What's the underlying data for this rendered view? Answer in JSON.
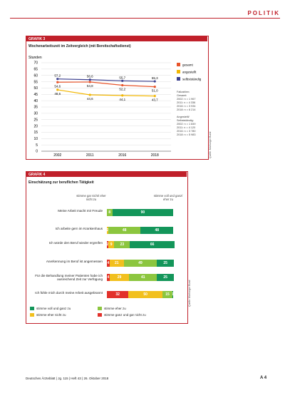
{
  "header": "POLITIK",
  "chart_data": [
    {
      "type": "line",
      "tag": "GRAFIK 3",
      "title": "Wochenarbeitszeit im Zeitvergleich (mit Bereitschaftsdienst)",
      "ylabel": "Stunden",
      "categories": [
        "2002",
        "2011",
        "2016",
        "2018"
      ],
      "ylim": [
        0,
        70
      ],
      "yticks": [
        0,
        5,
        10,
        15,
        20,
        25,
        30,
        35,
        40,
        45,
        50,
        55,
        60,
        65,
        70
      ],
      "grid": true,
      "series": [
        {
          "name": "gesamt",
          "color": "#e8542a",
          "values": [
            54.6,
            54.8,
            52.2,
            51.0
          ],
          "value_labels": [
            "54,6",
            "54,8",
            "52,2",
            "51,0"
          ]
        },
        {
          "name": "angestellt",
          "color": "#f2b705",
          "values": [
            48.6,
            44.6,
            44.1,
            43.7
          ],
          "value_labels": [
            "48,6",
            "44,6",
            "44,1",
            "43,7"
          ]
        },
        {
          "name": "selbstständig",
          "color": "#3b3f8f",
          "values": [
            57.2,
            56.6,
            55.7,
            55.3
          ],
          "value_labels": [
            "57,2",
            "56,6",
            "55,7",
            "55,3"
          ]
        }
      ],
      "note": [
        "Fallzahlen:",
        "Gesamt:",
        "2002: n = 1 967",
        "2011: n = 4 336",
        "2016: n = 3 934",
        "2018: n = 6 214",
        "",
        "Angestellt/",
        "Selbstständig:",
        "2002: n = 1 849",
        "2011: n = 4 120",
        "2016: n = 3 780",
        "2018: n = 5 983"
      ],
      "source": "Quelle: Marburger Bund"
    },
    {
      "type": "bar",
      "orientation": "horizontal",
      "stacked": true,
      "tag": "GRAFIK 4",
      "title": "Einschätzung zur beruflichen Tätigkeit",
      "column_headers": [
        "stimme gar nicht/ eher nicht zu",
        "stimme voll und ganz/ eher zu"
      ],
      "categories": [
        "Meine Arbeit macht mir Freude",
        "Ich arbeite gern im Krankenhaus",
        "Ich würde den Beruf wieder ergreifen",
        "Anerkennung im Beruf ist angemessen",
        "Für die Behandlung meiner Patienten habe ich ausreichend Zeit zur Verfügung",
        "Ich fühle mich durch meine Arbeit ausgebrannt"
      ],
      "series": [
        {
          "name": "stimme ganz und gar nicht zu",
          "color": "#e2312b",
          "values": [
            null,
            null,
            2,
            4,
            4,
            32
          ]
        },
        {
          "name": "stimme eher nicht zu",
          "color": "#f2c01e",
          "values": [
            null,
            2,
            9,
            21,
            29,
            50
          ]
        },
        {
          "name": "stimme eher zu",
          "color": "#8cc63f",
          "values": [
            8,
            48,
            23,
            49,
            41,
            15
          ]
        },
        {
          "name": "stimme voll und ganz zu",
          "color": "#13965a",
          "values": [
            90,
            48,
            66,
            25,
            25,
            1
          ]
        }
      ],
      "source": "Quelle: Marburger Bund"
    }
  ],
  "footer": {
    "left": "Deutsches Ärzteblatt | Jg. 115 | Heft 43 | 26. Oktober 2018",
    "right": "A 4"
  }
}
